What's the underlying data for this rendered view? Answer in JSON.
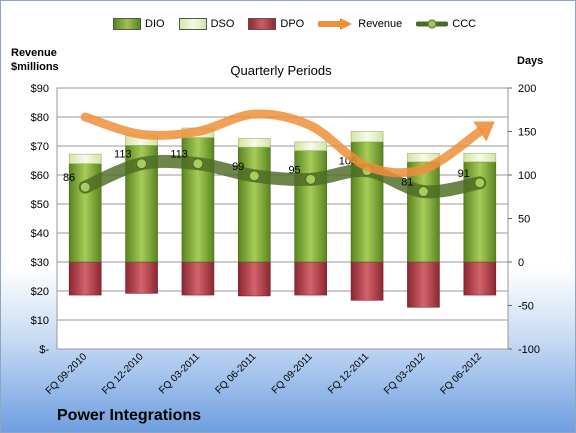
{
  "company": "Power Integrations",
  "chart_data": {
    "type": "bar",
    "title": "Quarterly Periods",
    "ylabel_left": "Revenue $millions",
    "ylabel_right": "Days",
    "categories": [
      "FQ 09-2010",
      "FQ 12-2010",
      "FQ 03-2011",
      "FQ 06-2011",
      "FQ 09-2011",
      "FQ 12-2011",
      "FQ 03-2012",
      "FQ 06-2012"
    ],
    "left_axis": {
      "ylim": [
        0,
        90
      ],
      "ticks": [
        "$-",
        "$10",
        "$20",
        "$30",
        "$40",
        "$50",
        "$60",
        "$70",
        "$80",
        "$90"
      ]
    },
    "right_axis": {
      "ylim": [
        -100,
        200
      ],
      "ticks": [
        "-100",
        "-50",
        "0",
        "50",
        "100",
        "150",
        "200"
      ]
    },
    "series": [
      {
        "name": "DIO",
        "type": "stacked-bar",
        "axis": "right",
        "color": "#6e9a2c",
        "values": [
          113,
          134,
          143,
          132,
          128,
          138,
          115,
          115
        ]
      },
      {
        "name": "DSO",
        "type": "stacked-bar",
        "axis": "right",
        "color": "#e4efc6",
        "values": [
          11,
          12,
          11,
          10,
          10,
          12,
          10,
          10
        ]
      },
      {
        "name": "DPO",
        "type": "bar-negative",
        "axis": "right",
        "color": "#b03a43",
        "values": [
          -38,
          -36,
          -38,
          -39,
          -38,
          -44,
          -52,
          -38
        ]
      },
      {
        "name": "Revenue",
        "type": "line",
        "axis": "left",
        "color": "#ef8f3a",
        "values": [
          80,
          74,
          75,
          81,
          77,
          63,
          62,
          75
        ]
      },
      {
        "name": "CCC",
        "type": "line",
        "axis": "right",
        "color": "#4d6b24",
        "values": [
          86,
          113,
          113,
          99,
          95,
          105,
          81,
          91
        ],
        "labels": [
          "86",
          "113",
          "113",
          "99",
          "95",
          "105",
          "81",
          "91"
        ]
      }
    ],
    "grid": true,
    "legend": "top"
  }
}
